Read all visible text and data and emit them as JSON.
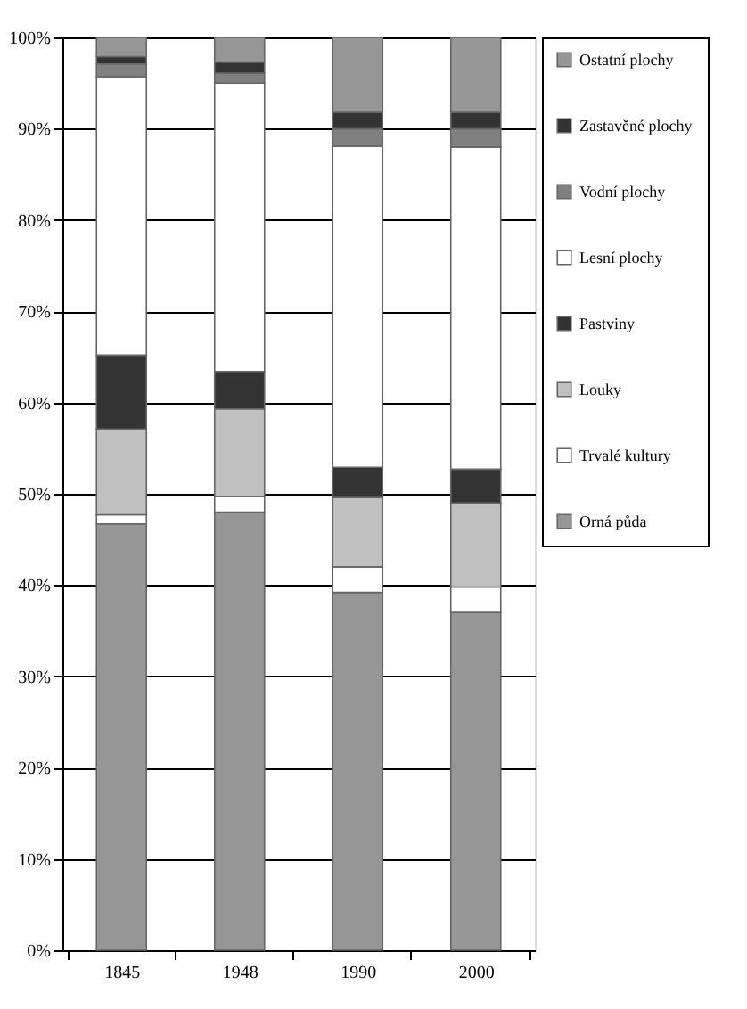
{
  "chart_data": {
    "type": "bar",
    "stacked": true,
    "categories": [
      "1845",
      "1948",
      "1990",
      "2000"
    ],
    "series": [
      {
        "name": "Orná půda",
        "color": "#969696",
        "values": [
          46.7,
          48.0,
          39.2,
          37.0
        ]
      },
      {
        "name": "Trvalé kultury",
        "color": "#ffffff",
        "values": [
          1.0,
          1.7,
          2.8,
          2.8
        ]
      },
      {
        "name": "Louky",
        "color": "#c0c0c0",
        "values": [
          9.4,
          9.6,
          7.6,
          9.2
        ]
      },
      {
        "name": "Pastviny",
        "color": "#333333",
        "values": [
          8.1,
          4.1,
          3.3,
          3.7
        ]
      },
      {
        "name": "Lesní plochy",
        "color": "#ffffff",
        "values": [
          30.5,
          31.6,
          35.2,
          35.3
        ]
      },
      {
        "name": "Vodní plochy",
        "color": "#808080",
        "values": [
          1.4,
          1.1,
          1.9,
          2.0
        ]
      },
      {
        "name": "Zastavěné plochy",
        "color": "#333333",
        "values": [
          0.8,
          1.2,
          1.8,
          1.8
        ]
      },
      {
        "name": "Ostatní plochy",
        "color": "#969696",
        "values": [
          2.1,
          2.7,
          8.2,
          8.2
        ]
      }
    ],
    "ylim": [
      0,
      100
    ],
    "yticks": [
      {
        "value": 0,
        "label": "0%"
      },
      {
        "value": 10,
        "label": "10%"
      },
      {
        "value": 20,
        "label": "20%"
      },
      {
        "value": 30,
        "label": "30%"
      },
      {
        "value": 40,
        "label": "40%"
      },
      {
        "value": 50,
        "label": "50%"
      },
      {
        "value": 60,
        "label": "60%"
      },
      {
        "value": 70,
        "label": "70%"
      },
      {
        "value": 80,
        "label": "80%"
      },
      {
        "value": 90,
        "label": "90%"
      },
      {
        "value": 100,
        "label": "100%"
      }
    ],
    "grid": "y",
    "legend": "right"
  }
}
